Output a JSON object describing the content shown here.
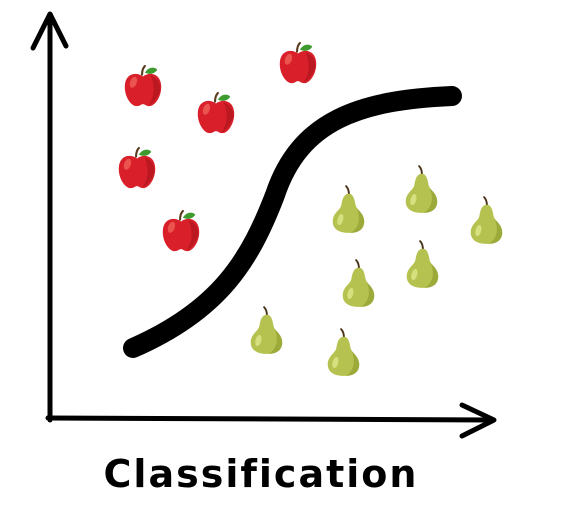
{
  "caption": "Classification",
  "colors": {
    "ink": "#000000",
    "apple_body": "#d9202a",
    "apple_shadow": "#a3121a",
    "apple_highlight": "#f26a5f",
    "apple_leaf": "#3f9a2f",
    "apple_stem": "#5b3a1e",
    "pear_body": "#b6c24f",
    "pear_shadow": "#8a9a2c",
    "pear_highlight": "#dde78a",
    "pear_stem": "#4a3317"
  },
  "icons": {
    "apple": "apple-icon",
    "pear": "pear-icon"
  },
  "classes": [
    "apple",
    "pear"
  ]
}
